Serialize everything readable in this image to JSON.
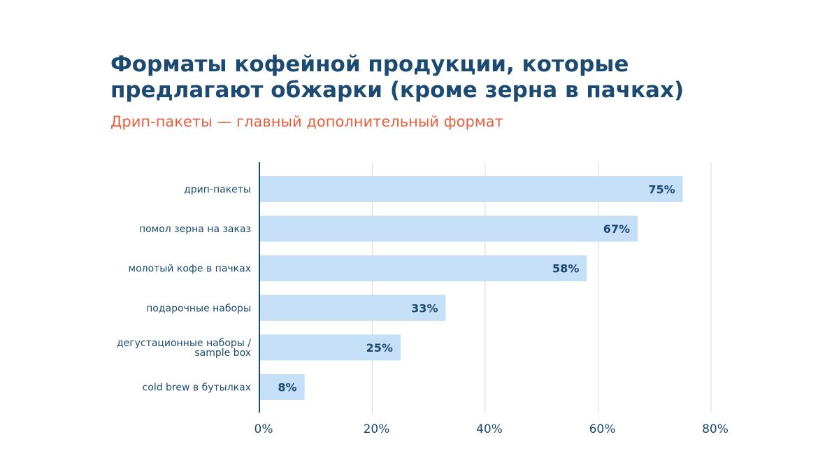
{
  "header": {
    "title_line1": "Форматы кофейной продукции, которые",
    "title_line2": "предлагают обжарки (кроме зерна в пачках)",
    "subtitle": "Дрип-пакеты — главный дополнительный формат"
  },
  "colors": {
    "bar": "#c5dff7",
    "text": "#1d4a70",
    "accent": "#e85f3c",
    "grid": "#d9d9d9",
    "axis": "#1d4a70"
  },
  "chart_data": {
    "type": "bar",
    "orientation": "horizontal",
    "categories": [
      [
        "дрип-пакеты"
      ],
      [
        "помол зерна на заказ"
      ],
      [
        "молотый кофе в пачках"
      ],
      [
        "подарочные наборы"
      ],
      [
        "дегустационные наборы /",
        "sample box"
      ],
      [
        "cold brew в бутылках"
      ]
    ],
    "values": [
      75,
      67,
      58,
      33,
      25,
      8
    ],
    "data_labels": [
      "75%",
      "67%",
      "58%",
      "33%",
      "25%",
      "8%"
    ],
    "xlim": [
      0,
      80
    ],
    "xticks": [
      0,
      20,
      40,
      60,
      80
    ],
    "xtick_labels": [
      "0%",
      "20%",
      "40%",
      "60%",
      "80%"
    ],
    "grid": true
  }
}
